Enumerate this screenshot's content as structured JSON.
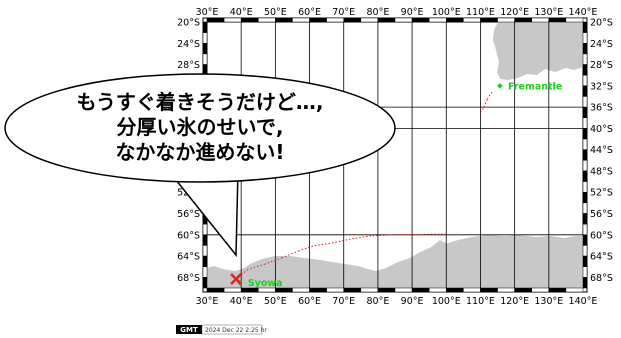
{
  "map": {
    "lon_labels": [
      "30°E",
      "40°E",
      "50°E",
      "60°E",
      "70°E",
      "80°E",
      "90°E",
      "100°E",
      "110°E",
      "120°E",
      "130°E",
      "140°E"
    ],
    "lat_labels": [
      "20°S",
      "24°S",
      "28°S",
      "32°S",
      "36°S",
      "40°S",
      "44°S",
      "48°S",
      "52°S",
      "56°S",
      "60°S",
      "64°S",
      "68°S"
    ],
    "lon_range": [
      30,
      140
    ],
    "lat_range": [
      -20,
      -70
    ],
    "places": [
      {
        "name": "Fremantle",
        "lon": 115.7,
        "lat": -32.0
      },
      {
        "name": "Syowa",
        "lon": 39.6,
        "lat": -69.0
      }
    ],
    "ship_position": {
      "lon": 38.5,
      "lat": -68.3
    },
    "track": [
      {
        "lon": 110,
        "lat": -37
      },
      {
        "lon": 111,
        "lat": -36
      },
      {
        "lon": 112,
        "lat": -34.5
      },
      {
        "lon": 113.5,
        "lat": -33
      },
      {
        "lon": 100,
        "lat": -59.9
      },
      {
        "lon": 95,
        "lat": -59.9
      },
      {
        "lon": 90,
        "lat": -60
      },
      {
        "lon": 85,
        "lat": -60
      },
      {
        "lon": 78,
        "lat": -60.2
      },
      {
        "lon": 72,
        "lat": -60.8
      },
      {
        "lon": 66,
        "lat": -61.6
      },
      {
        "lon": 61,
        "lat": -62.1
      },
      {
        "lon": 57,
        "lat": -63
      },
      {
        "lon": 52,
        "lat": -64.3
      },
      {
        "lon": 47,
        "lat": -65.5
      },
      {
        "lon": 42,
        "lat": -66.5
      },
      {
        "lon": 38.5,
        "lat": -68.3
      }
    ]
  },
  "bubble": {
    "lines": [
      "もうすぐ着きそうだけど…,",
      "分厚い氷のせいで,",
      "なかなか進めない!"
    ]
  },
  "stamp": {
    "logo": "GMT",
    "text": "2024 Dec 22  2:25 hr"
  },
  "colors": {
    "land": "#c8c8c8",
    "track": "#e02020",
    "place": "#1fcf1f",
    "marker": "#e02020"
  }
}
